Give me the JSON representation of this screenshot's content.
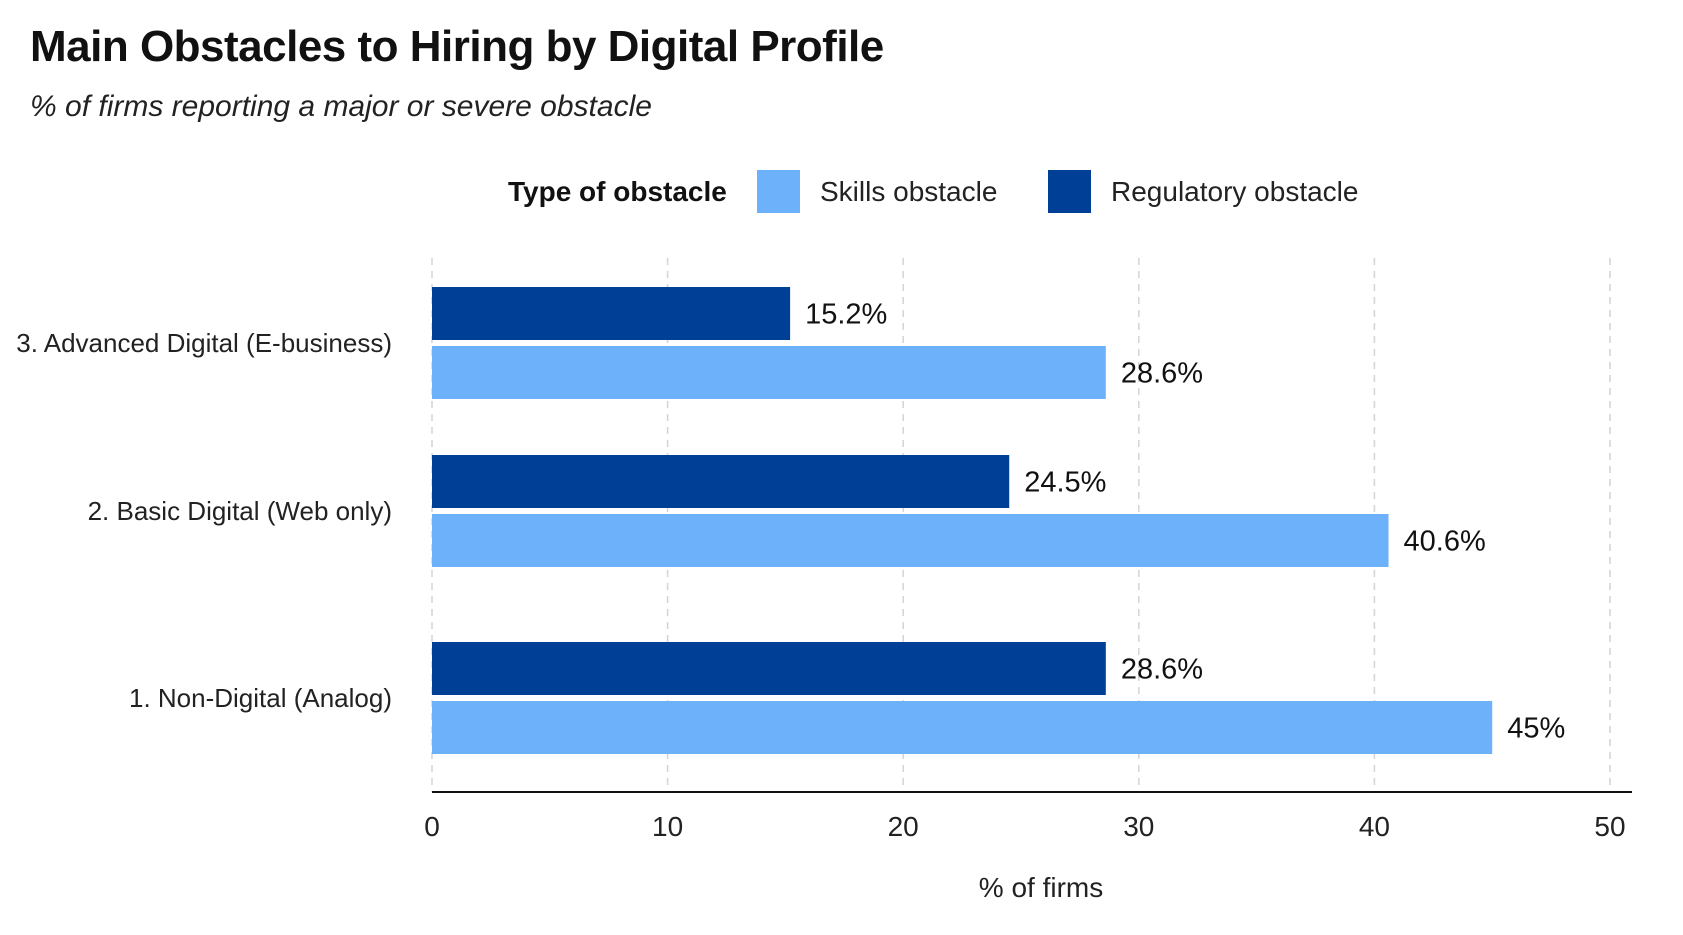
{
  "chart_data": {
    "type": "bar",
    "orientation": "horizontal",
    "title": "Main Obstacles to Hiring by Digital Profile",
    "subtitle": "% of firms reporting a major or severe obstacle",
    "xlabel": "% of firms",
    "ylabel": "",
    "xlim": [
      0,
      50
    ],
    "xticks": [
      0,
      10,
      20,
      30,
      40,
      50
    ],
    "grid": "vertical dashed",
    "legend_title": "Type of obstacle",
    "legend_position": "top",
    "categories": [
      "3. Advanced Digital (E-business)",
      "2. Basic Digital (Web only)",
      "1. Non-Digital (Analog)"
    ],
    "series": [
      {
        "name": "Regulatory obstacle",
        "color": "#003f96",
        "values": [
          15.2,
          24.5,
          28.6
        ],
        "labels": [
          "15.2%",
          "24.5%",
          "28.6%"
        ]
      },
      {
        "name": "Skills obstacle",
        "color": "#6eb1fb",
        "values": [
          28.6,
          40.6,
          45
        ],
        "labels": [
          "28.6%",
          "40.6%",
          "45%"
        ]
      }
    ]
  }
}
